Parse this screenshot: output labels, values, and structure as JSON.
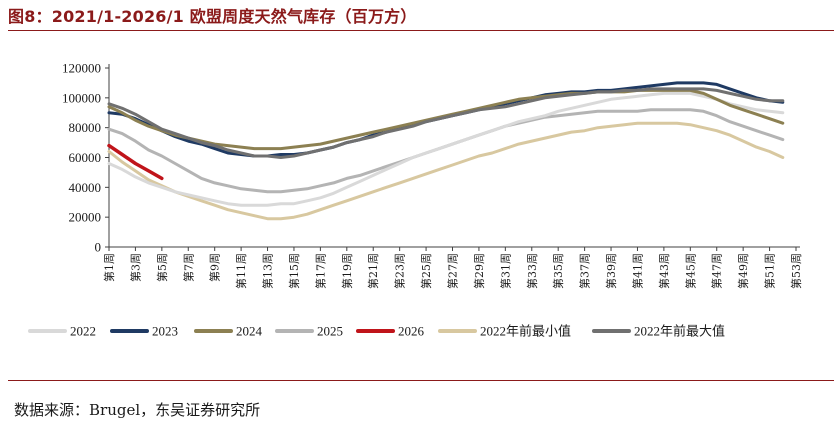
{
  "figure": {
    "title": "图8：2021/1-2026/1 欧盟周度天然气库存（百万方）",
    "source": "数据来源：Brugel，东吴证券研究所"
  },
  "chart_data": {
    "type": "line",
    "title": "2021/1-2026/1 欧盟周度天然气库存（百万方）",
    "xlabel": "",
    "ylabel": "",
    "ylim": [
      0,
      120000
    ],
    "yticks": [
      0,
      20000,
      40000,
      60000,
      80000,
      100000,
      120000
    ],
    "x": [
      1,
      2,
      3,
      4,
      5,
      6,
      7,
      8,
      9,
      10,
      11,
      12,
      13,
      14,
      15,
      16,
      17,
      18,
      19,
      20,
      21,
      22,
      23,
      24,
      25,
      26,
      27,
      28,
      29,
      30,
      31,
      32,
      33,
      34,
      35,
      36,
      37,
      38,
      39,
      40,
      41,
      42,
      43,
      44,
      45,
      46,
      47,
      48,
      49,
      50,
      51,
      52,
      53
    ],
    "x_tick_labels": [
      "第1周",
      "第3周",
      "第5周",
      "第7周",
      "第9周",
      "第11周",
      "第13周",
      "第15周",
      "第17周",
      "第19周",
      "第21周",
      "第23周",
      "第25周",
      "第27周",
      "第29周",
      "第31周",
      "第33周",
      "第35周",
      "第37周",
      "第39周",
      "第41周",
      "第43周",
      "第45周",
      "第47周",
      "第49周",
      "第51周",
      "第53周"
    ],
    "grid": false,
    "legend_position": "bottom",
    "series": [
      {
        "name": "2022",
        "color": "#d9d9d9",
        "width": 3,
        "values": [
          56000,
          52000,
          47000,
          43000,
          40000,
          37000,
          35000,
          33000,
          31000,
          29000,
          28000,
          28000,
          28000,
          29000,
          29000,
          31000,
          33000,
          36000,
          40000,
          44000,
          48000,
          52000,
          56000,
          60000,
          63000,
          66000,
          69000,
          72000,
          75000,
          78000,
          81000,
          84000,
          86000,
          88000,
          91000,
          93000,
          95000,
          97000,
          99000,
          100000,
          101000,
          102000,
          103000,
          103000,
          103000,
          101000,
          99000,
          96000,
          94000,
          92000,
          91000,
          90000,
          null
        ]
      },
      {
        "name": "2023",
        "color": "#1f3a63",
        "width": 3,
        "values": [
          90000,
          89000,
          86000,
          82000,
          78000,
          74000,
          71000,
          69000,
          66000,
          63000,
          62000,
          61000,
          61000,
          62000,
          62000,
          63000,
          65000,
          67000,
          70000,
          72000,
          75000,
          77000,
          80000,
          82000,
          84000,
          86000,
          88000,
          90000,
          92000,
          94000,
          96000,
          98000,
          100000,
          102000,
          103000,
          104000,
          104000,
          105000,
          105000,
          106000,
          107000,
          108000,
          109000,
          110000,
          110000,
          110000,
          109000,
          106000,
          103000,
          100000,
          98000,
          97000,
          null
        ]
      },
      {
        "name": "2024",
        "color": "#8c8052",
        "width": 3,
        "values": [
          94000,
          90000,
          85000,
          81000,
          78000,
          75000,
          73000,
          71000,
          69000,
          68000,
          67000,
          66000,
          66000,
          66000,
          67000,
          68000,
          69000,
          71000,
          73000,
          75000,
          77000,
          79000,
          81000,
          83000,
          85000,
          87000,
          89000,
          91000,
          93000,
          95000,
          97000,
          99000,
          100000,
          101000,
          102000,
          103000,
          103000,
          104000,
          104000,
          104000,
          105000,
          105000,
          105000,
          105000,
          105000,
          103000,
          99000,
          95000,
          92000,
          89000,
          86000,
          83000,
          null
        ]
      },
      {
        "name": "2025",
        "color": "#b4b4b4",
        "width": 3,
        "values": [
          79000,
          76000,
          71000,
          65000,
          61000,
          56000,
          51000,
          46000,
          43000,
          41000,
          39000,
          38000,
          37000,
          37000,
          38000,
          39000,
          41000,
          43000,
          46000,
          48000,
          51000,
          54000,
          57000,
          60000,
          63000,
          66000,
          69000,
          72000,
          75000,
          78000,
          81000,
          83000,
          85000,
          87000,
          88000,
          89000,
          90000,
          91000,
          91000,
          91000,
          91000,
          92000,
          92000,
          92000,
          92000,
          91000,
          88000,
          84000,
          81000,
          78000,
          75000,
          72000,
          null
        ]
      },
      {
        "name": "2026",
        "color": "#c0141a",
        "width": 3.5,
        "values": [
          68000,
          62000,
          56000,
          51000,
          46000,
          null,
          null,
          null,
          null,
          null,
          null,
          null,
          null,
          null,
          null,
          null,
          null,
          null,
          null,
          null,
          null,
          null,
          null,
          null,
          null,
          null,
          null,
          null,
          null,
          null,
          null,
          null,
          null,
          null,
          null,
          null,
          null,
          null,
          null,
          null,
          null,
          null,
          null,
          null,
          null,
          null,
          null,
          null,
          null,
          null,
          null,
          null,
          null
        ]
      },
      {
        "name": "2022年前最小值",
        "color": "#d8c8a0",
        "width": 3,
        "values": [
          64000,
          57000,
          51000,
          45000,
          41000,
          37000,
          34000,
          31000,
          28000,
          25000,
          23000,
          21000,
          19000,
          19000,
          20000,
          22000,
          25000,
          28000,
          31000,
          34000,
          37000,
          40000,
          43000,
          46000,
          49000,
          52000,
          55000,
          58000,
          61000,
          63000,
          66000,
          69000,
          71000,
          73000,
          75000,
          77000,
          78000,
          80000,
          81000,
          82000,
          83000,
          83000,
          83000,
          83000,
          82000,
          80000,
          78000,
          75000,
          71000,
          67000,
          64000,
          60000,
          null
        ]
      },
      {
        "name": "2022年前最大值",
        "color": "#707070",
        "width": 3,
        "values": [
          96000,
          93000,
          89000,
          84000,
          79000,
          76000,
          73000,
          70000,
          68000,
          65000,
          63000,
          61000,
          61000,
          60000,
          61000,
          63000,
          65000,
          67000,
          70000,
          72000,
          74000,
          77000,
          79000,
          81000,
          84000,
          86000,
          88000,
          90000,
          92000,
          93000,
          94000,
          96000,
          98000,
          100000,
          101000,
          102000,
          103000,
          104000,
          104000,
          105000,
          105000,
          106000,
          106000,
          106000,
          106000,
          106000,
          105000,
          103000,
          101000,
          99000,
          98000,
          98000,
          null
        ]
      }
    ]
  }
}
